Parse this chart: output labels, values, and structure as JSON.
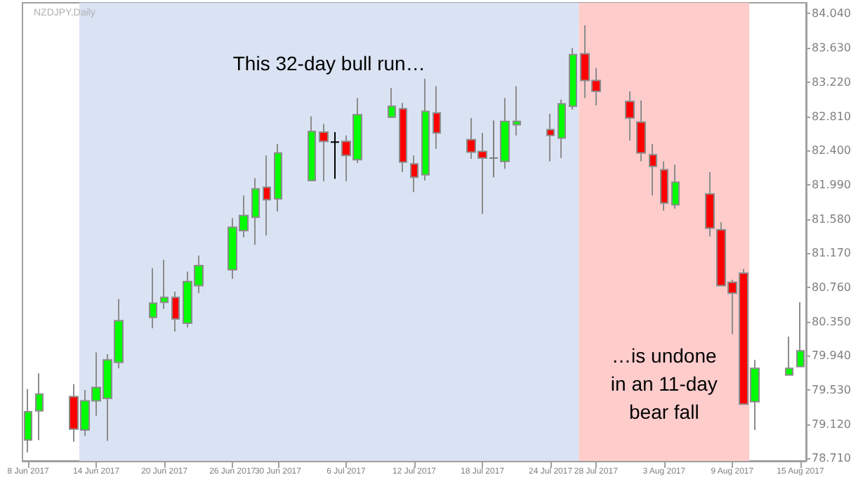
{
  "chart_data": {
    "type": "candlestick",
    "x": [
      "2017-06-08",
      "2017-06-09",
      "2017-06-12",
      "2017-06-13",
      "2017-06-14",
      "2017-06-15",
      "2017-06-16",
      "2017-06-19",
      "2017-06-20",
      "2017-06-21",
      "2017-06-22",
      "2017-06-23",
      "2017-06-26",
      "2017-06-27",
      "2017-06-28",
      "2017-06-29",
      "2017-06-30",
      "2017-07-03",
      "2017-07-04",
      "2017-07-05",
      "2017-07-06",
      "2017-07-07",
      "2017-07-10",
      "2017-07-11",
      "2017-07-12",
      "2017-07-13",
      "2017-07-14",
      "2017-07-17",
      "2017-07-18",
      "2017-07-19",
      "2017-07-20",
      "2017-07-21",
      "2017-07-24",
      "2017-07-25",
      "2017-07-26",
      "2017-07-27",
      "2017-07-28",
      "2017-07-31",
      "2017-08-01",
      "2017-08-02",
      "2017-08-03",
      "2017-08-04",
      "2017-08-07",
      "2017-08-08",
      "2017-08-09",
      "2017-08-10",
      "2017-08-11",
      "2017-08-14",
      "2017-08-15"
    ],
    "ohlc": [
      [
        78.93,
        79.54,
        78.78,
        79.27
      ],
      [
        79.28,
        79.73,
        78.93,
        79.48
      ],
      [
        79.45,
        79.6,
        78.91,
        79.06
      ],
      [
        79.05,
        79.53,
        78.98,
        79.4
      ],
      [
        79.4,
        79.98,
        79.22,
        79.56
      ],
      [
        79.43,
        79.96,
        78.92,
        79.89
      ],
      [
        79.86,
        80.62,
        79.79,
        80.36
      ],
      [
        80.4,
        80.99,
        80.27,
        80.57
      ],
      [
        80.58,
        81.09,
        80.5,
        80.64
      ],
      [
        80.64,
        80.71,
        80.23,
        80.38
      ],
      [
        80.33,
        80.95,
        80.28,
        80.83
      ],
      [
        80.78,
        81.14,
        80.69,
        81.02
      ],
      [
        80.97,
        81.59,
        80.86,
        81.48
      ],
      [
        81.44,
        81.86,
        81.36,
        81.62
      ],
      [
        81.6,
        82.07,
        81.27,
        81.94
      ],
      [
        81.96,
        82.34,
        81.38,
        81.81
      ],
      [
        81.82,
        82.48,
        81.67,
        82.37
      ],
      [
        82.04,
        82.81,
        82.04,
        82.63
      ],
      [
        82.62,
        82.72,
        82.03,
        82.51
      ],
      [
        82.5,
        82.62,
        82.06,
        82.5
      ],
      [
        82.51,
        82.58,
        82.03,
        82.34
      ],
      [
        82.29,
        83.03,
        82.25,
        82.83
      ],
      [
        82.8,
        83.15,
        82.8,
        82.93
      ],
      [
        82.9,
        82.97,
        82.14,
        82.26
      ],
      [
        82.24,
        82.34,
        81.9,
        82.08
      ],
      [
        82.11,
        83.26,
        82.04,
        82.87
      ],
      [
        82.85,
        83.17,
        82.42,
        82.61
      ],
      [
        82.53,
        82.79,
        82.3,
        82.38
      ],
      [
        82.39,
        82.61,
        81.64,
        82.31
      ],
      [
        82.31,
        82.76,
        82.08,
        82.31
      ],
      [
        82.27,
        83.03,
        82.18,
        82.75
      ],
      [
        82.71,
        83.17,
        82.58,
        82.75
      ],
      [
        82.65,
        82.84,
        82.27,
        82.58
      ],
      [
        82.55,
        83.01,
        82.31,
        82.96
      ],
      [
        82.93,
        83.63,
        82.89,
        83.55
      ],
      [
        83.56,
        83.9,
        83.03,
        83.24
      ],
      [
        83.24,
        83.39,
        82.94,
        83.11
      ],
      [
        82.99,
        83.11,
        82.52,
        82.79
      ],
      [
        82.74,
        83.0,
        82.27,
        82.37
      ],
      [
        82.35,
        82.48,
        81.86,
        82.21
      ],
      [
        82.17,
        82.27,
        81.68,
        81.77
      ],
      [
        81.75,
        82.23,
        81.7,
        82.02
      ],
      [
        81.88,
        82.14,
        81.37,
        81.47
      ],
      [
        81.45,
        81.54,
        80.78,
        80.78
      ],
      [
        80.82,
        80.85,
        80.2,
        80.69
      ],
      [
        80.93,
        80.98,
        79.36,
        79.36
      ],
      [
        79.39,
        79.89,
        79.05,
        79.79
      ],
      [
        79.71,
        80.17,
        79.71,
        79.79
      ],
      [
        79.81,
        80.58,
        79.81,
        80.0
      ]
    ],
    "colors": [
      "#00ff00",
      "#00ff00",
      "#ff0000",
      "#00ff00",
      "#00ff00",
      "#00ff00",
      "#00ff00",
      "#00ff00",
      "#00ff00",
      "#ff0000",
      "#00ff00",
      "#00ff00",
      "#00ff00",
      "#00ff00",
      "#00ff00",
      "#ff0000",
      "#00ff00",
      "#00ff00",
      "#ff0000",
      "#000000",
      "#ff0000",
      "#00ff00",
      "#00ff00",
      "#ff0000",
      "#ff0000",
      "#00ff00",
      "#ff0000",
      "#ff0000",
      "#ff0000",
      "#808080",
      "#00ff00",
      "#00ff00",
      "#ff0000",
      "#00ff00",
      "#00ff00",
      "#ff0000",
      "#ff0000",
      "#ff0000",
      "#ff0000",
      "#ff0000",
      "#ff0000",
      "#00ff00",
      "#ff0000",
      "#ff0000",
      "#ff0000",
      "#ff0000",
      "#00ff00",
      "#00ff00",
      "#00ff00"
    ],
    "xticks": [
      {
        "value": "2017-06-08",
        "label": "8 Jun 2017"
      },
      {
        "value": "2017-06-14",
        "label": "14 Jun 2017"
      },
      {
        "value": "2017-06-20",
        "label": "20 Jun 2017"
      },
      {
        "value": "2017-06-26",
        "label": "26 Jun 2017"
      },
      {
        "value": "2017-06-30",
        "label": "30 Jun 2017"
      },
      {
        "value": "2017-07-06",
        "label": "6 Jul 2017"
      },
      {
        "value": "2017-07-12",
        "label": "12 Jul 2017"
      },
      {
        "value": "2017-07-18",
        "label": "18 Jul 2017"
      },
      {
        "value": "2017-07-24",
        "label": "24 Jul 2017"
      },
      {
        "value": "2017-07-28",
        "label": "28 Jul 2017"
      },
      {
        "value": "2017-08-03",
        "label": "3 Aug 2017"
      },
      {
        "value": "2017-08-09",
        "label": "9 Aug 2017"
      },
      {
        "value": "2017-08-15",
        "label": "15 Aug 2017"
      }
    ],
    "ylim": [
      78.68,
      84.17
    ],
    "yticks": [
      {
        "value": 84.04,
        "label": "84.040"
      },
      {
        "value": 83.63,
        "label": "83.630"
      },
      {
        "value": 83.22,
        "label": "83.220"
      },
      {
        "value": 82.81,
        "label": "82.810"
      },
      {
        "value": 82.4,
        "label": "82.400"
      },
      {
        "value": 81.99,
        "label": "81.990"
      },
      {
        "value": 81.58,
        "label": "81.580"
      },
      {
        "value": 81.17,
        "label": "81.170"
      },
      {
        "value": 80.76,
        "label": "80.760"
      },
      {
        "value": 80.35,
        "label": "80.350"
      },
      {
        "value": 79.94,
        "label": "79.940"
      },
      {
        "value": 79.53,
        "label": "79.530"
      },
      {
        "value": 79.12,
        "label": "79.120"
      },
      {
        "value": 78.71,
        "label": "78.710"
      }
    ],
    "xlim": [
      "2017-06-07T12:00",
      "2017-08-15T12:00"
    ],
    "bands": [
      {
        "axis": "x",
        "from": "2017-06-12T12:00",
        "to": "2017-07-26T12:00",
        "color": "#dae3f3"
      },
      {
        "axis": "x",
        "from": "2017-07-26T12:00",
        "to": "2017-08-10T12:00",
        "color": "#ffcccc"
      }
    ],
    "subtitle": "NZDJPY,Daily",
    "annotations": [
      "This 32-day bull run…",
      "…is undone\nin an 11-day\nbear fall"
    ],
    "grid": false
  }
}
